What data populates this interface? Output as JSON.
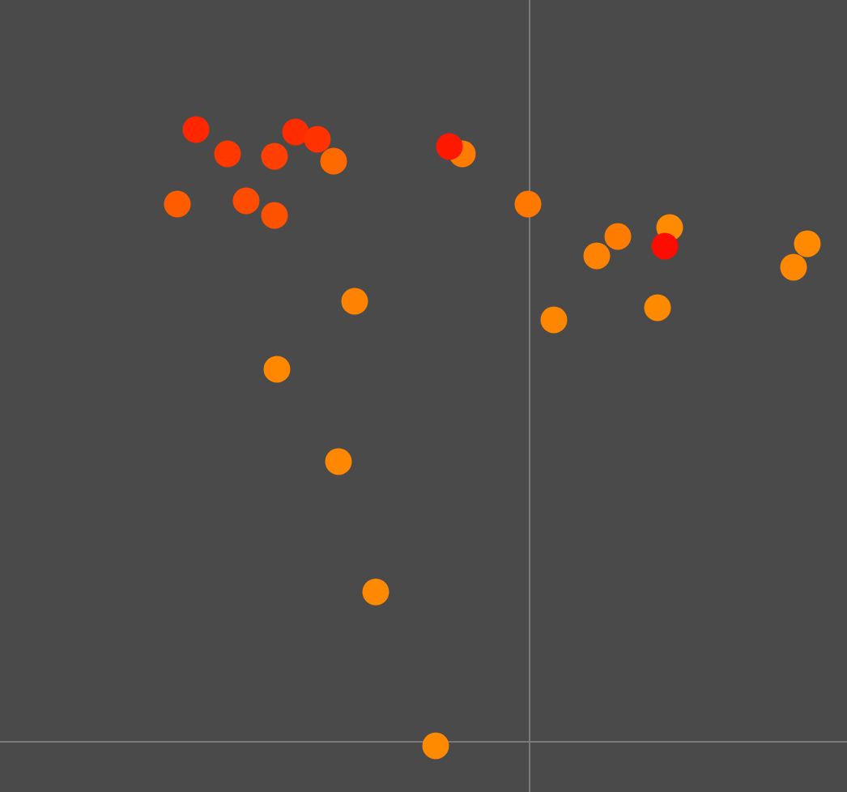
{
  "chart_data": {
    "type": "scatter",
    "x": [
      -412,
      -373,
      -315,
      -289,
      -262,
      -242,
      -83,
      -99,
      -435,
      -350,
      -315,
      -2,
      109,
      173,
      167,
      83,
      343,
      326,
      -216,
      30,
      158,
      -312,
      -236,
      -190,
      -116
    ],
    "y": [
      756,
      726,
      723,
      753,
      744,
      717,
      726,
      735,
      664,
      668,
      650,
      664,
      624,
      635,
      612,
      600,
      615,
      586,
      544,
      521,
      536,
      460,
      346,
      185,
      -5
    ],
    "colors": [
      "#ff2600",
      "#ff3800",
      "#ff4000",
      "#ff2c00",
      "#ff3200",
      "#ff6a00",
      "#ff7c00",
      "#ff1800",
      "#ff5c00",
      "#ff4c00",
      "#ff5200",
      "#ff7800",
      "#ff7c00",
      "#ff8c00",
      "#ff0c00",
      "#ff8200",
      "#ff8a00",
      "#ff8800",
      "#ff8200",
      "#ff8600",
      "#ff8a00",
      "#ff8800",
      "#ff8800",
      "#ff8a00",
      "#ff8a00"
    ],
    "xlim": [
      -654,
      392
    ],
    "ylim": [
      -62,
      916
    ]
  }
}
